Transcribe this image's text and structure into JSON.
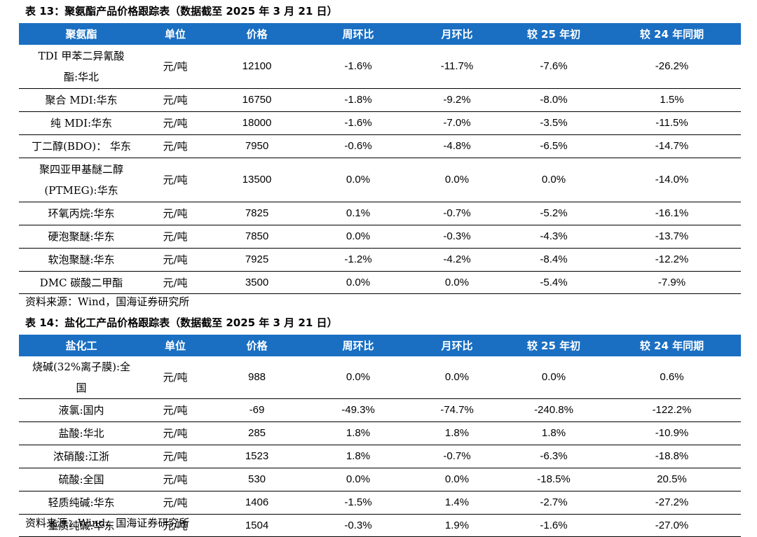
{
  "table13": {
    "caption": "表 13：聚氨酯产品价格跟踪表（数据截至 2025 年 3 月 21 日）",
    "headers": [
      "聚氨酯",
      "单位",
      "价格",
      "周环比",
      "月环比",
      "较 25 年初",
      "较 24 年同期"
    ],
    "rows": [
      {
        "name": "TDI 甲苯二异氰酸酯:华北",
        "unit": "元/吨",
        "price": "12100",
        "wow": "-1.6%",
        "mom": "-11.7%",
        "ytd": "-7.6%",
        "yoy": "-26.2%"
      },
      {
        "name": "聚合 MDI:华东",
        "unit": "元/吨",
        "price": "16750",
        "wow": "-1.8%",
        "mom": "-9.2%",
        "ytd": "-8.0%",
        "yoy": "1.5%"
      },
      {
        "name": "纯 MDI:华东",
        "unit": "元/吨",
        "price": "18000",
        "wow": "-1.6%",
        "mom": "-7.0%",
        "ytd": "-3.5%",
        "yoy": "-11.5%"
      },
      {
        "name": "丁二醇(BDO)： 华东",
        "unit": "元/吨",
        "price": "7950",
        "wow": "-0.6%",
        "mom": "-4.8%",
        "ytd": "-6.5%",
        "yoy": "-14.7%"
      },
      {
        "name": "聚四亚甲基醚二醇(PTMEG):华东",
        "unit": "元/吨",
        "price": "13500",
        "wow": "0.0%",
        "mom": "0.0%",
        "ytd": "0.0%",
        "yoy": "-14.0%"
      },
      {
        "name": "环氧丙烷:华东",
        "unit": "元/吨",
        "price": "7825",
        "wow": "0.1%",
        "mom": "-0.7%",
        "ytd": "-5.2%",
        "yoy": "-16.1%"
      },
      {
        "name": "硬泡聚醚:华东",
        "unit": "元/吨",
        "price": "7850",
        "wow": "0.0%",
        "mom": "-0.3%",
        "ytd": "-4.3%",
        "yoy": "-13.7%"
      },
      {
        "name": "软泡聚醚:华东",
        "unit": "元/吨",
        "price": "7925",
        "wow": "-1.2%",
        "mom": "-4.2%",
        "ytd": "-8.4%",
        "yoy": "-12.2%"
      },
      {
        "name": "DMC 碳酸二甲酯",
        "unit": "元/吨",
        "price": "3500",
        "wow": "0.0%",
        "mom": "0.0%",
        "ytd": "-5.4%",
        "yoy": "-7.9%"
      }
    ],
    "source": "资料来源：Wind，国海证券研究所"
  },
  "table14": {
    "caption": "表 14：盐化工产品价格跟踪表（数据截至 2025 年 3 月 21 日）",
    "headers": [
      "盐化工",
      "单位",
      "价格",
      "周环比",
      "月环比",
      "较 25 年初",
      "较 24 年同期"
    ],
    "rows": [
      {
        "name": "烧碱(32%离子膜):全国",
        "unit": "元/吨",
        "price": "988",
        "wow": "0.0%",
        "mom": "0.0%",
        "ytd": "0.0%",
        "yoy": "0.6%"
      },
      {
        "name": "液氯:国内",
        "unit": "元/吨",
        "price": "-69",
        "wow": "-49.3%",
        "mom": "-74.7%",
        "ytd": "-240.8%",
        "yoy": "-122.2%"
      },
      {
        "name": "盐酸:华北",
        "unit": "元/吨",
        "price": "285",
        "wow": "1.8%",
        "mom": "1.8%",
        "ytd": "1.8%",
        "yoy": "-10.9%"
      },
      {
        "name": "浓硝酸:江浙",
        "unit": "元/吨",
        "price": "1523",
        "wow": "1.8%",
        "mom": "-0.7%",
        "ytd": "-6.3%",
        "yoy": "-18.8%"
      },
      {
        "name": "硫酸:全国",
        "unit": "元/吨",
        "price": "530",
        "wow": "0.0%",
        "mom": "0.0%",
        "ytd": "-18.5%",
        "yoy": "20.5%"
      },
      {
        "name": "轻质纯碱:华东",
        "unit": "元/吨",
        "price": "1406",
        "wow": "-1.5%",
        "mom": "1.4%",
        "ytd": "-2.7%",
        "yoy": "-27.2%"
      },
      {
        "name": "重质纯碱:华东",
        "unit": "元/吨",
        "price": "1504",
        "wow": "-0.3%",
        "mom": "1.9%",
        "ytd": "-1.6%",
        "yoy": "-27.0%"
      }
    ],
    "source": "资料来源：Wind，国海证券研究所"
  }
}
